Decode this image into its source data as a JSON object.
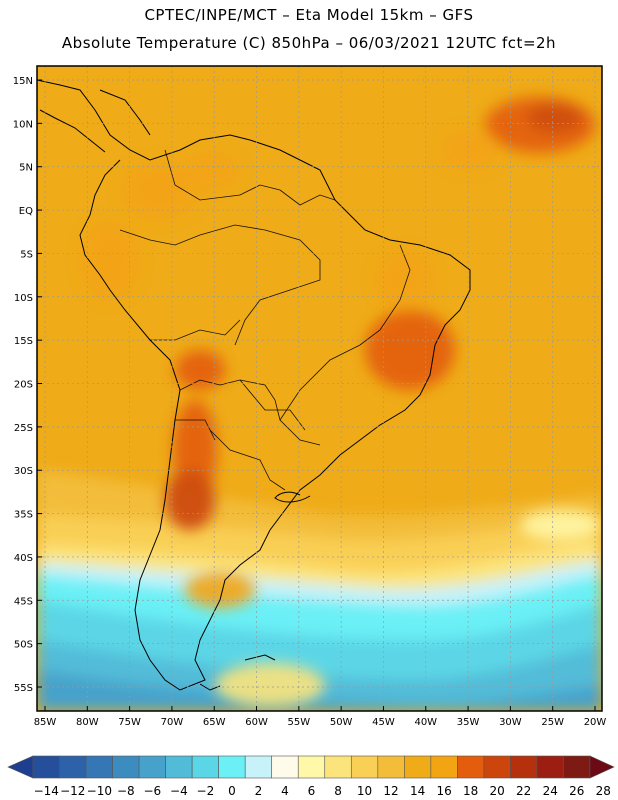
{
  "header": {
    "line1": "CPTEC/INPE/MCT –  Eta Model 15km – GFS",
    "line2": "Absolute Temperature (C) 850hPa – 06/03/2021 12UTC fct=2h"
  },
  "map": {
    "lat_labels": [
      "15N",
      "10N",
      "5N",
      "EQ",
      "5S",
      "10S",
      "15S",
      "20S",
      "25S",
      "30S",
      "35S",
      "40S",
      "45S",
      "50S",
      "55S"
    ],
    "lon_labels": [
      "85W",
      "80W",
      "75W",
      "70W",
      "65W",
      "60W",
      "55W",
      "50W",
      "45W",
      "40W",
      "35W",
      "30W",
      "25W",
      "20W"
    ],
    "lat_range": [
      15,
      -55
    ],
    "lon_range": [
      -85,
      -20
    ]
  },
  "colorbar": {
    "ticks": [
      "-14",
      "-12",
      "-10",
      "-8",
      "-6",
      "-4",
      "-2",
      "0",
      "2",
      "4",
      "6",
      "8",
      "10",
      "12",
      "14",
      "16",
      "18",
      "20",
      "22",
      "24",
      "26",
      "28"
    ],
    "colors": [
      "#1e3f8f",
      "#254f9a",
      "#2d62a8",
      "#3577b4",
      "#3d8cbf",
      "#46a2cb",
      "#52bcd8",
      "#5bd6e6",
      "#6bf0f6",
      "#c8f2fa",
      "#fffbea",
      "#fff8a8",
      "#fce47c",
      "#f9cf55",
      "#f3bd3a",
      "#efab18",
      "#f3a413",
      "#e35d0c",
      "#cc450c",
      "#b5300c",
      "#9c1d12",
      "#7d1a13",
      "#6b0a14"
    ]
  }
}
